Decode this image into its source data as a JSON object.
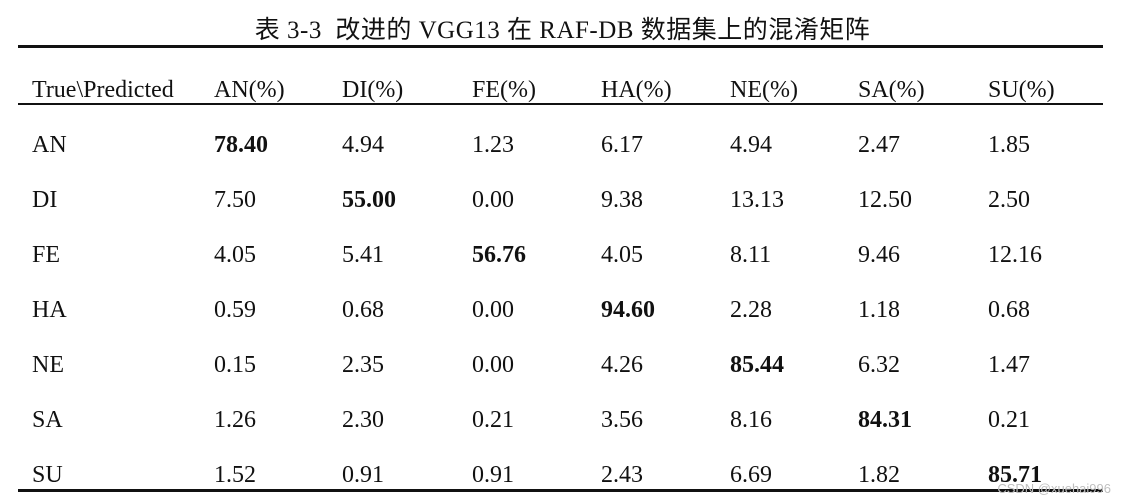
{
  "caption": "表 3-3  改进的 VGG13 在 RAF-DB 数据集上的混淆矩阵",
  "table": {
    "header": [
      "True\\Predicted",
      "AN(%)",
      "DI(%)",
      "FE(%)",
      "HA(%)",
      "NE(%)",
      "SA(%)",
      "SU(%)"
    ],
    "rows": [
      {
        "label": "AN",
        "values": [
          "78.40",
          "4.94",
          "1.23",
          "6.17",
          "4.94",
          "2.47",
          "1.85"
        ]
      },
      {
        "label": "DI",
        "values": [
          "7.50",
          "55.00",
          "0.00",
          "9.38",
          "13.13",
          "12.50",
          "2.50"
        ]
      },
      {
        "label": "FE",
        "values": [
          "4.05",
          "5.41",
          "56.76",
          "4.05",
          "8.11",
          "9.46",
          "12.16"
        ]
      },
      {
        "label": "HA",
        "values": [
          "0.59",
          "0.68",
          "0.00",
          "94.60",
          "2.28",
          "1.18",
          "0.68"
        ]
      },
      {
        "label": "NE",
        "values": [
          "0.15",
          "2.35",
          "0.00",
          "4.26",
          "85.44",
          "6.32",
          "1.47"
        ]
      },
      {
        "label": "SA",
        "values": [
          "1.26",
          "2.30",
          "0.21",
          "3.56",
          "8.16",
          "84.31",
          "0.21"
        ]
      },
      {
        "label": "SU",
        "values": [
          "1.52",
          "0.91",
          "0.91",
          "2.43",
          "6.69",
          "1.82",
          "85.71"
        ]
      }
    ]
  },
  "watermark": "CSDN @xuehai996"
}
